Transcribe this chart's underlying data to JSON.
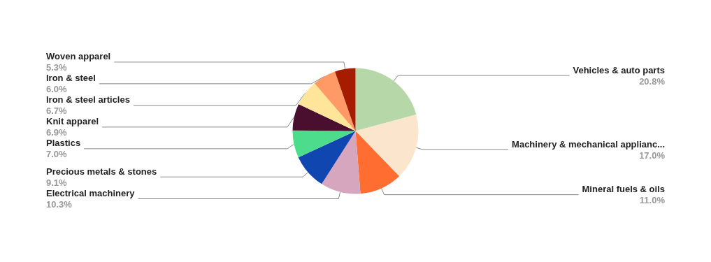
{
  "chart_data": {
    "type": "pie",
    "categories": [
      "Vehicles & auto parts",
      "Machinery & mechanical applianc...",
      "Mineral fuels & oils",
      "Electrical machinery",
      "Precious metals & stones",
      "Plastics",
      "Knit apparel",
      "Iron & steel articles",
      "Iron & steel",
      "Woven apparel"
    ],
    "values": [
      20.8,
      17.0,
      11.0,
      10.3,
      9.1,
      7.0,
      6.9,
      6.7,
      6.0,
      5.3
    ],
    "value_labels": [
      "20.8%",
      "17.0%",
      "11.0%",
      "10.3%",
      "9.1%",
      "7.0%",
      "6.9%",
      "6.7%",
      "6.0%",
      "5.3%"
    ],
    "colors": [
      "#b6d7a8",
      "#fce5cd",
      "#ff6d31",
      "#d5a6bd",
      "#1046b0",
      "#4cdc8b",
      "#4a0f2e",
      "#ffe599",
      "#ff9966",
      "#a61c00"
    ],
    "legend": false
  }
}
